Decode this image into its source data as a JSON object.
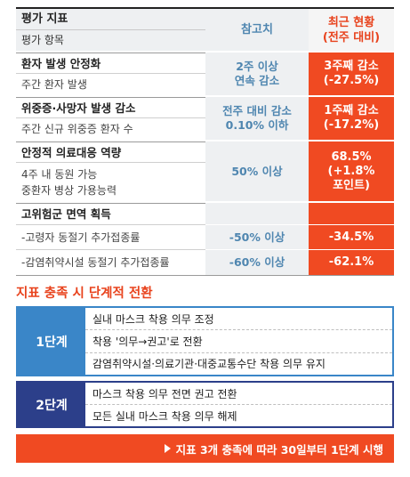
{
  "table": {
    "header": {
      "title": "평가 지표",
      "subtitle": "평가 항목",
      "ref_label": "참고치",
      "current_label_line1": "최근 현황",
      "current_label_line2": "(전주 대비)"
    },
    "groups": [
      {
        "title": "환자 발생 안정화",
        "rows": [
          {
            "name": "주간 환자 발생",
            "ref_line1": "2주 이상",
            "ref_line2": "연속 감소",
            "cur_line1": "3주째 감소",
            "cur_line2": "(-27.5%)",
            "cur_line3": ""
          }
        ]
      },
      {
        "title": "위중증·사망자 발생 감소",
        "rows": [
          {
            "name": "주간 신규 위중증 환자 수",
            "ref_line1": "전주 대비 감소",
            "ref_line2": "0.10% 이하",
            "cur_line1": "1주째 감소",
            "cur_line2": "(-17.2%)",
            "cur_line3": ""
          }
        ]
      },
      {
        "title": "안정적 의료대응 역량",
        "rows": [
          {
            "name_line1": "4주 내 동원 가능",
            "name_line2": "중환자 병상 가용능력",
            "ref_line1": "50% 이상",
            "ref_line2": "",
            "cur_line1": "68.5%",
            "cur_line2": "(+1.8%",
            "cur_line3": "포인트)"
          }
        ]
      },
      {
        "title": "고위험군 면역 획득",
        "rows": [
          {
            "name": "-고령자 동절기 추가접종률",
            "ref": "-50% 이상",
            "cur": "-34.5%"
          },
          {
            "name": "-감염취약시설 동절기 추가접종률",
            "ref": "-60% 이상",
            "cur": "-62.1%"
          }
        ]
      }
    ]
  },
  "transition": {
    "title": "지표 충족 시 단계적 전환",
    "stage1": {
      "label": "1단계",
      "items": [
        "실내 마스크 착용 의무 조정",
        "착용 '의무→권고'로 전환",
        "감염취약시설·의료기관·대중교통수단 착용 의무 유지"
      ]
    },
    "stage2": {
      "label": "2단계",
      "items": [
        "마스크 착용 의무 전면 권고 전환",
        "모든 실내 마스크 착용 의무 해제"
      ]
    },
    "banner": "지표 3개 충족에 따라 30일부터 1단계 시행"
  },
  "colors": {
    "accent_orange": "#f04a22",
    "ref_blue": "#4f86b0",
    "stage1_blue": "#3a86c8",
    "stage2_navy": "#2c3f8a"
  }
}
